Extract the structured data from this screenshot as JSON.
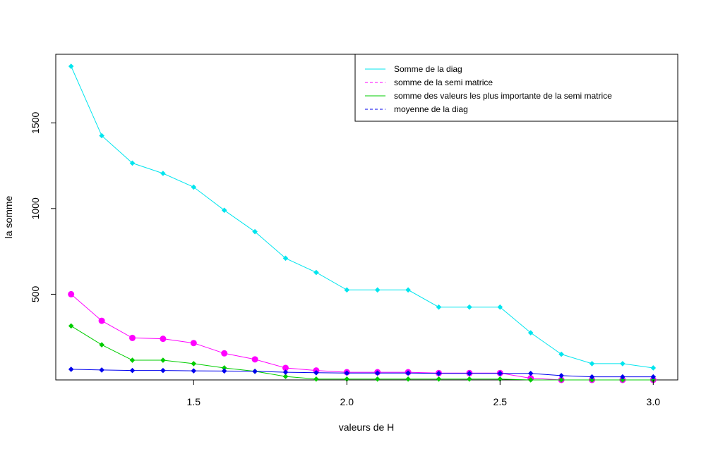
{
  "chart_data": {
    "type": "line",
    "title": "",
    "xlabel": "valeurs de H",
    "ylabel": "la somme",
    "xlim": [
      1.05,
      3.08
    ],
    "ylim": [
      0,
      1900
    ],
    "xticks": [
      1.5,
      2.0,
      2.5,
      3.0
    ],
    "xtick_labels": [
      "1.5",
      "2.0",
      "2.5",
      "3.0"
    ],
    "yticks": [
      500,
      1000,
      1500
    ],
    "ytick_labels": [
      "500",
      "1000",
      "1500"
    ],
    "grid": false,
    "legend_position": "top-right",
    "x": [
      1.1,
      1.2,
      1.3,
      1.4,
      1.5,
      1.6,
      1.7,
      1.8,
      1.9,
      2.0,
      2.1,
      2.2,
      2.3,
      2.4,
      2.5,
      2.6,
      2.7,
      2.8,
      2.9,
      3.0
    ],
    "series": [
      {
        "name": "Somme de la diag",
        "color": "#00e5ee",
        "line_style": "solid",
        "marker": "diamond",
        "values": [
          1830,
          1425,
          1265,
          1205,
          1125,
          990,
          865,
          710,
          627,
          525,
          525,
          525,
          425,
          425,
          425,
          275,
          150,
          95,
          95,
          70
        ]
      },
      {
        "name": "somme de la semi matrice",
        "color": "#ff00ff",
        "line_style": "dashed",
        "marker": "circle",
        "values": [
          500,
          345,
          245,
          240,
          215,
          155,
          120,
          70,
          55,
          45,
          45,
          45,
          40,
          40,
          40,
          10,
          0,
          0,
          0,
          0
        ]
      },
      {
        "name": "somme des valeurs les plus importante de la semi matrice",
        "color": "#00cd00",
        "line_style": "solid",
        "marker": "diamond",
        "values": [
          315,
          205,
          115,
          115,
          95,
          70,
          50,
          20,
          5,
          5,
          5,
          5,
          5,
          5,
          5,
          0,
          0,
          0,
          0,
          0
        ]
      },
      {
        "name": "moyenne de la diag",
        "color": "#0000ee",
        "line_style": "dashed",
        "marker": "diamond",
        "values": [
          62,
          58,
          55,
          55,
          53,
          52,
          50,
          45,
          42,
          40,
          40,
          40,
          38,
          38,
          38,
          38,
          25,
          18,
          18,
          18
        ]
      }
    ]
  }
}
